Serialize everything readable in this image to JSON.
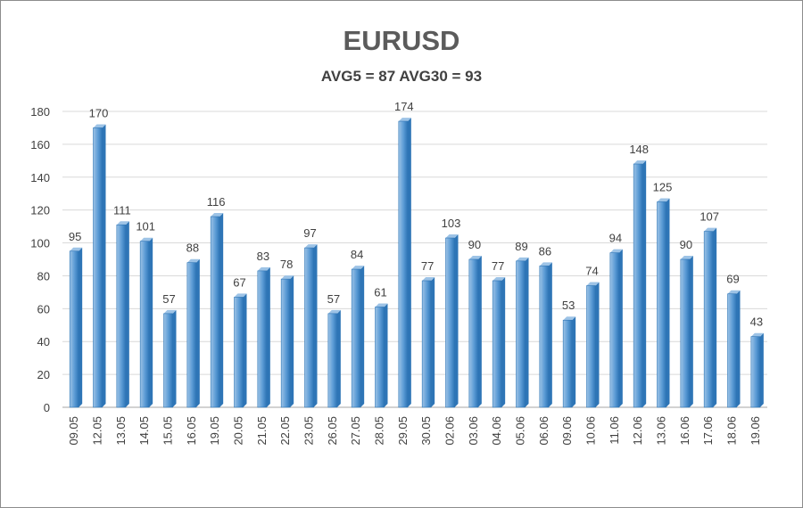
{
  "chart_data": {
    "type": "bar",
    "title": "EURUSD",
    "subtitle": "AVG5 = 87 AVG30 = 93",
    "xlabel": "",
    "ylabel": "",
    "ylim": [
      0,
      180
    ],
    "yticks": [
      0,
      20,
      40,
      60,
      80,
      100,
      120,
      140,
      160,
      180
    ],
    "grid": true,
    "legend": "none",
    "categories": [
      "09.05",
      "12.05",
      "13.05",
      "14.05",
      "15.05",
      "16.05",
      "19.05",
      "20.05",
      "21.05",
      "22.05",
      "23.05",
      "26.05",
      "27.05",
      "28.05",
      "29.05",
      "30.05",
      "02.06",
      "03.06",
      "04.06",
      "05.06",
      "06.06",
      "09.06",
      "10.06",
      "11.06",
      "12.06",
      "13.06",
      "16.06",
      "17.06",
      "18.06",
      "19.06"
    ],
    "values": [
      95,
      170,
      111,
      101,
      57,
      88,
      116,
      67,
      83,
      78,
      97,
      57,
      84,
      61,
      174,
      77,
      103,
      90,
      77,
      89,
      86,
      53,
      74,
      94,
      148,
      125,
      90,
      107,
      69,
      43
    ],
    "colors": {
      "bar_top": "#9dc3e6",
      "bar_mid": "#5b9bd5",
      "bar_dark": "#2e75b6",
      "gridline": "#d9d9d9",
      "axis": "#a6a6a6"
    }
  }
}
